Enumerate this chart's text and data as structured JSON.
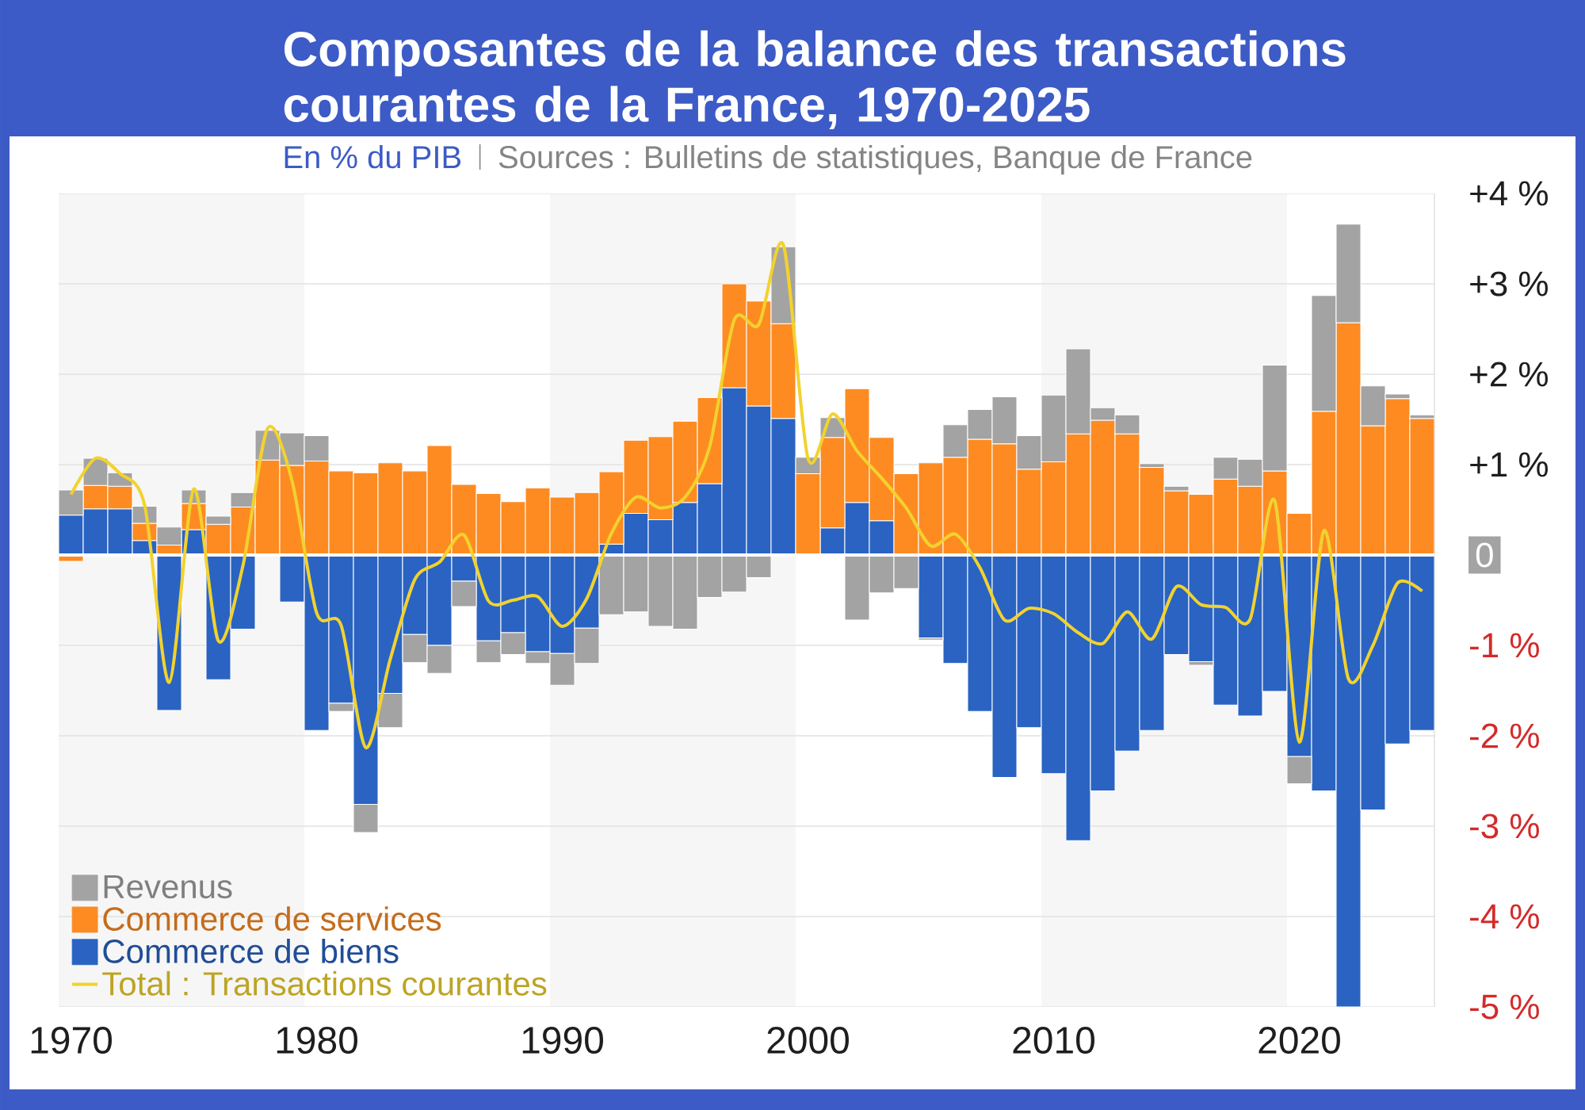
{
  "chart_data": {
    "type": "bar",
    "title": "Composantes de la balance des transactions courantes de la France, 1970-2025",
    "subtitle": "En % du PIB",
    "annotations": [
      "Sources : Bulletins de statistiques, Banque de France"
    ],
    "stacked": true,
    "x": [
      1970,
      1971,
      1972,
      1973,
      1974,
      1975,
      1976,
      1977,
      1978,
      1979,
      1980,
      1981,
      1982,
      1983,
      1984,
      1985,
      1986,
      1987,
      1988,
      1989,
      1990,
      1991,
      1992,
      1993,
      1994,
      1995,
      1996,
      1997,
      1998,
      1999,
      2000,
      2001,
      2002,
      2003,
      2004,
      2005,
      2006,
      2007,
      2008,
      2009,
      2010,
      2011,
      2012,
      2013,
      2014,
      2015,
      2016,
      2017,
      2018,
      2019,
      2020,
      2021,
      2022,
      2023,
      2024,
      2025
    ],
    "series": [
      {
        "name": "Commerce de biens",
        "color": "#2a63c2",
        "values": [
          0.44,
          0.51,
          0.51,
          0.16,
          -1.72,
          0.28,
          -1.38,
          -0.82,
          null,
          -0.52,
          -1.94,
          -1.64,
          -2.76,
          -1.53,
          -0.88,
          -1.0,
          -0.29,
          -0.95,
          -0.86,
          -1.07,
          -1.09,
          -0.81,
          0.12,
          0.46,
          0.39,
          0.58,
          0.79,
          1.85,
          1.65,
          1.51,
          null,
          0.3,
          0.58,
          0.38,
          null,
          -0.92,
          -1.2,
          -1.73,
          -2.46,
          -1.91,
          -2.42,
          -3.16,
          -2.61,
          -2.17,
          -1.94,
          -1.1,
          -1.18,
          -1.66,
          -1.78,
          -1.51,
          -2.23,
          -2.61,
          -5.0,
          -2.82,
          -2.09,
          -1.94
        ]
      },
      {
        "name": "Commerce de services",
        "color": "#fd8b22",
        "values": [
          -0.07,
          0.26,
          0.25,
          0.19,
          0.11,
          0.29,
          0.34,
          0.53,
          1.05,
          0.99,
          1.04,
          0.93,
          0.91,
          1.02,
          0.93,
          1.21,
          0.78,
          0.68,
          0.59,
          0.74,
          0.64,
          0.69,
          0.8,
          0.81,
          0.92,
          0.9,
          0.95,
          1.15,
          1.16,
          1.05,
          0.9,
          1.0,
          1.26,
          0.92,
          0.9,
          1.02,
          1.08,
          1.28,
          1.23,
          0.95,
          1.03,
          1.34,
          1.49,
          1.34,
          0.97,
          0.71,
          0.67,
          0.84,
          0.76,
          0.93,
          0.46,
          1.59,
          2.57,
          1.43,
          1.73,
          1.51
        ]
      },
      {
        "name": "Revenus",
        "color": "#a3a3a3",
        "values": [
          0.28,
          0.3,
          0.15,
          0.19,
          0.2,
          0.15,
          0.09,
          0.16,
          0.33,
          0.36,
          0.28,
          -0.09,
          -0.31,
          -0.38,
          -0.31,
          -0.31,
          -0.28,
          -0.24,
          -0.24,
          -0.13,
          -0.35,
          -0.39,
          -0.66,
          -0.63,
          -0.79,
          -0.82,
          -0.47,
          -0.41,
          -0.25,
          0.85,
          0.18,
          0.22,
          -0.72,
          -0.42,
          -0.37,
          -0.02,
          0.36,
          0.33,
          0.52,
          0.37,
          0.74,
          0.94,
          0.14,
          0.21,
          0.04,
          0.05,
          -0.04,
          0.24,
          0.3,
          1.17,
          -0.3,
          1.28,
          1.09,
          0.44,
          0.05,
          0.04
        ]
      },
      {
        "name": "Total : Transactions courantes",
        "type": "line",
        "color": "#f2d22e",
        "values": [
          0.67,
          1.07,
          0.9,
          0.55,
          -1.41,
          0.73,
          -0.95,
          -0.12,
          1.4,
          0.82,
          -0.64,
          -0.78,
          -2.13,
          -1.15,
          -0.27,
          -0.08,
          0.22,
          -0.51,
          -0.5,
          -0.46,
          -0.79,
          -0.48,
          0.24,
          0.64,
          0.52,
          0.64,
          1.2,
          2.6,
          2.55,
          3.43,
          1.07,
          1.56,
          1.15,
          0.85,
          0.52,
          0.1,
          0.23,
          -0.14,
          -0.72,
          -0.59,
          -0.65,
          -0.86,
          -0.98,
          -0.63,
          -0.93,
          -0.35,
          -0.55,
          -0.58,
          -0.71,
          0.6,
          -2.07,
          0.27,
          -1.37,
          -1.0,
          -0.31,
          -0.4
        ]
      }
    ],
    "xlim": [
      1969.5,
      2025.5
    ],
    "xticks": [
      1970,
      1980,
      1990,
      2000,
      2010,
      2020
    ],
    "ylim": [
      -5,
      4
    ],
    "yticks": [
      {
        "value": -5,
        "label": "-5 %"
      },
      {
        "value": -4,
        "label": "-4 %"
      },
      {
        "value": -3,
        "label": "-3 %"
      },
      {
        "value": -2,
        "label": "-2 %"
      },
      {
        "value": -1,
        "label": "-1 %"
      },
      0,
      {
        "value": 1,
        "label": "+1 %"
      },
      {
        "value": 2,
        "label": "+2 %"
      },
      {
        "value": 3,
        "label": "+3 %"
      },
      {
        "value": 4,
        "label": "+4 %"
      }
    ],
    "bands": [
      {
        "axis": "x",
        "from": 1969.5,
        "to": 1979.5,
        "color": "#f6f6f6"
      },
      {
        "axis": "x",
        "from": 1989.5,
        "to": 1999.5,
        "color": "#f6f6f6"
      },
      {
        "axis": "x",
        "from": 2009.5,
        "to": 2019.5,
        "color": "#f6f6f6"
      }
    ],
    "grid": "y",
    "legend": "bottom left"
  }
}
